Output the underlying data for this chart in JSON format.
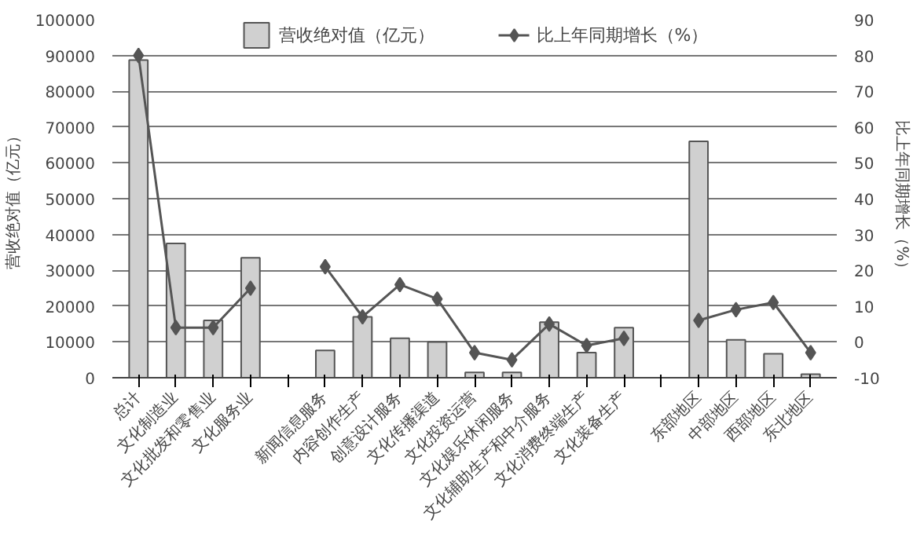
{
  "chart_data": {
    "type": "bar",
    "categories": [
      "总计",
      "文化制造业",
      "文化批发和零售业",
      "文化服务业",
      null,
      "新闻信息服务",
      "内容创作生产",
      "创意设计服务",
      "文化传播渠道",
      "文化投资运营",
      "文化娱乐休闲服务",
      "文化辅助生产和中介服务",
      "文化消费终端生产",
      "文化装备生产",
      null,
      "东部地区",
      "中部地区",
      "西部地区",
      "东北地区"
    ],
    "series": [
      {
        "name": "营收绝对值（亿元）",
        "color": "#d0d0d0",
        "values": [
          88700,
          37500,
          16000,
          33500,
          null,
          7600,
          17000,
          11000,
          10000,
          1500,
          1500,
          15500,
          7000,
          14000,
          null,
          66000,
          10600,
          6700,
          1000
        ]
      },
      {
        "name": "比上年同期增长（%）",
        "type": "line",
        "axis": "y2",
        "color": "#555555",
        "values": [
          80,
          4,
          4,
          15,
          null,
          21,
          7,
          16,
          12,
          -3,
          -5,
          5,
          -1,
          1,
          null,
          6,
          9,
          11,
          -3
        ]
      }
    ],
    "ylabel": "营收绝对值（亿元）",
    "y2label": "比上年同期增长（%）",
    "ylim": [
      0,
      100000
    ],
    "yticks": [
      0,
      10000,
      20000,
      30000,
      40000,
      50000,
      60000,
      70000,
      80000,
      90000,
      100000
    ],
    "y2lim": [
      -10,
      90
    ],
    "y2ticks": [
      -10,
      0,
      10,
      20,
      30,
      40,
      50,
      60,
      70,
      80,
      90
    ],
    "grid": "y",
    "legend": "top",
    "marker": "diamond"
  }
}
